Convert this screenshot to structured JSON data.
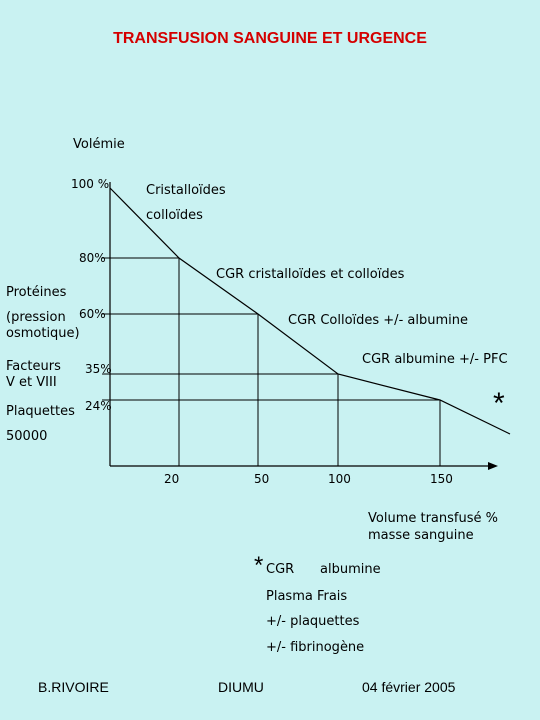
{
  "title": "TRANSFUSION SANGUINE ET URGENCE",
  "y_axis_label": "Volémie",
  "y_ticks": [
    "100 %",
    "80%",
    "60%",
    "35%",
    "24%"
  ],
  "x_ticks": [
    "20",
    "50",
    "100",
    "150"
  ],
  "x_axis_label_line1": "Volume transfusé %",
  "x_axis_label_line2": "masse sanguine",
  "stages": {
    "s1_line1": "Cristalloïdes",
    "s1_line2": "colloïdes",
    "s2": "CGR cristalloïdes et colloïdes",
    "s3": "CGR Colloïdes +/- albumine",
    "s4": "CGR albumine +/- PFC"
  },
  "left_labels": {
    "proteines": "Protéines",
    "pression_line1": "(pression",
    "pression_line2": "osmotique)",
    "facteurs_line1": "Facteurs",
    "facteurs_line2": "V et VIII",
    "plaquettes": "Plaquettes",
    "plaquettes_value": "50000"
  },
  "star": "*",
  "footnote": {
    "line1_part1": "CGR",
    "line1_part2": "albumine",
    "line2": "Plasma Frais",
    "line3": "+/- plaquettes",
    "line4": "+/- fibrinogène"
  },
  "footer": {
    "author": "B.RIVOIRE",
    "org": "DIUMU",
    "date": "04 février 2005"
  },
  "curve_points": [
    {
      "x": 0,
      "y": 100
    },
    {
      "x": 20,
      "y": 80
    },
    {
      "x": 50,
      "y": 60
    },
    {
      "x": 100,
      "y": 35
    },
    {
      "x": 150,
      "y": 24
    }
  ]
}
